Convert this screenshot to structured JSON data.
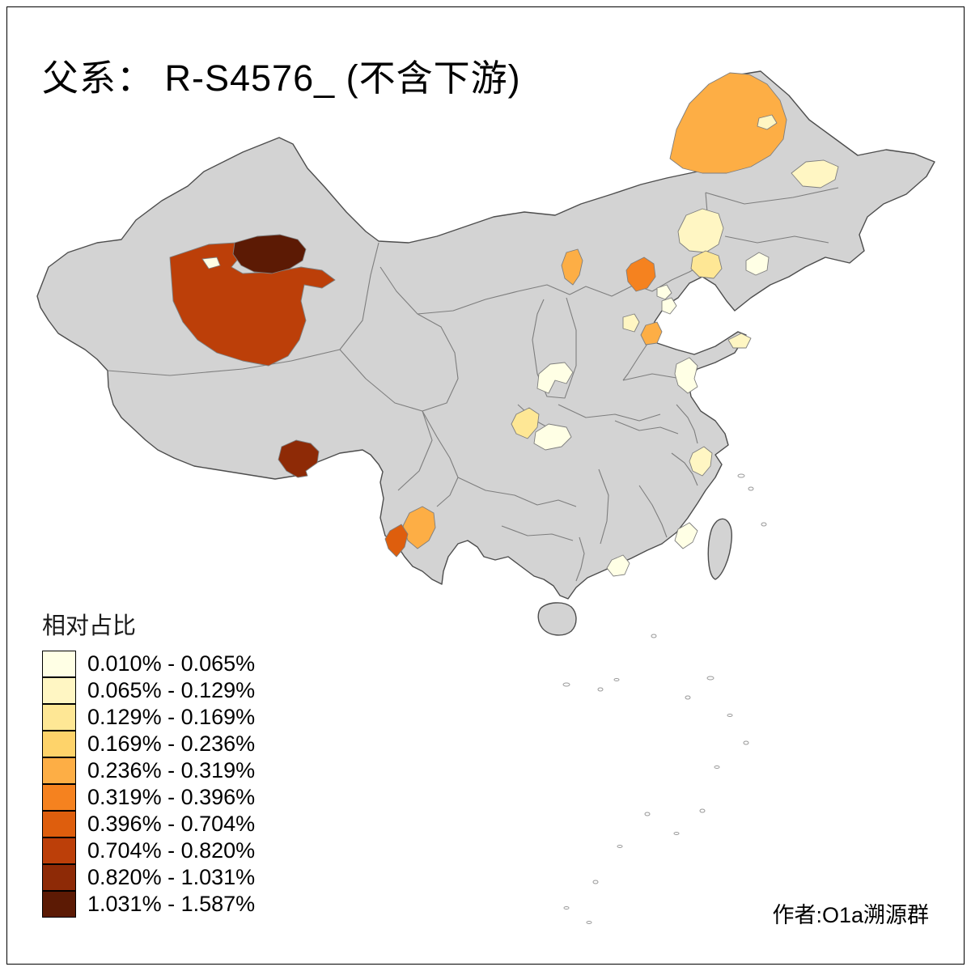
{
  "page": {
    "background": "#ffffff",
    "frame_color": "#000000"
  },
  "title": "父系： R-S4576_ (不含下游)",
  "legend": {
    "title": "相对占比",
    "classes": [
      {
        "label": "0.010% - 0.065%",
        "color": "#FFFFE5"
      },
      {
        "label": "0.065% - 0.129%",
        "color": "#FFF6C3"
      },
      {
        "label": "0.129% - 0.169%",
        "color": "#FEE795"
      },
      {
        "label": "0.169% - 0.236%",
        "color": "#FED36A"
      },
      {
        "label": "0.236% - 0.319%",
        "color": "#FDAE45"
      },
      {
        "label": "0.319% - 0.396%",
        "color": "#F5821F"
      },
      {
        "label": "0.396% - 0.704%",
        "color": "#DE5E0D"
      },
      {
        "label": "0.704% - 0.820%",
        "color": "#BC3F09"
      },
      {
        "label": "0.820% - 1.031%",
        "color": "#8E2A06"
      },
      {
        "label": "1.031% - 1.587%",
        "color": "#5C1A04"
      }
    ]
  },
  "credit": "作者:O1a溯源群",
  "map": {
    "base_fill": "#D3D3D3",
    "outer_border_color": "#4D4D4D",
    "inner_border_color": "#7E7E7E",
    "island_stroke": "#9A9A9A",
    "regions": {
      "xinjiang-main": 8,
      "xinjiang-dark": 10,
      "xinjiang-sliver": 1,
      "tibet-dark": 9,
      "hulunbuir-orange": 5,
      "hulunbuir-inner-pale": 2,
      "ne-east-pale": 2,
      "jilin-pale": 2,
      "jilin-yellow": 3,
      "liaoning-pale": 1,
      "inner-mongolia-orange": 5,
      "beijing-orange": 6,
      "beijing-east-pale-1": 1,
      "beijing-east-pale-2": 1,
      "hebei-pale": 2,
      "tianjin-orange": 5,
      "shandong-coast-pale": 2,
      "shandong-pale": 1,
      "shanxi-henan-pale": 1,
      "shaanxi-yellow": 3,
      "sichuan-pale": 1,
      "zhejiang-pale": 2,
      "yunnan-orange": 5,
      "yunnan-dark-orange": 7,
      "fujian-pale": 1,
      "guangdong-pale": 1
    }
  }
}
